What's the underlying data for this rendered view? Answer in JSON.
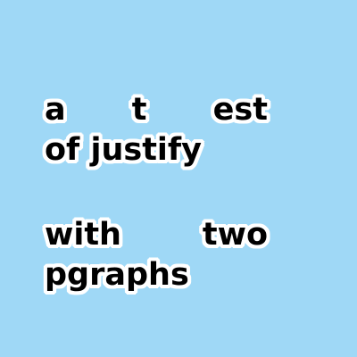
{
  "paragraphs": [
    {
      "lines": [
        [
          "a",
          "t",
          "est"
        ],
        [
          "of justify"
        ]
      ]
    },
    {
      "lines": [
        [
          "with",
          "two"
        ],
        [
          "pgraphs"
        ]
      ]
    }
  ],
  "colors": {
    "background": "#9fd8f6",
    "text": "#000000",
    "outline": "#ffffff"
  }
}
